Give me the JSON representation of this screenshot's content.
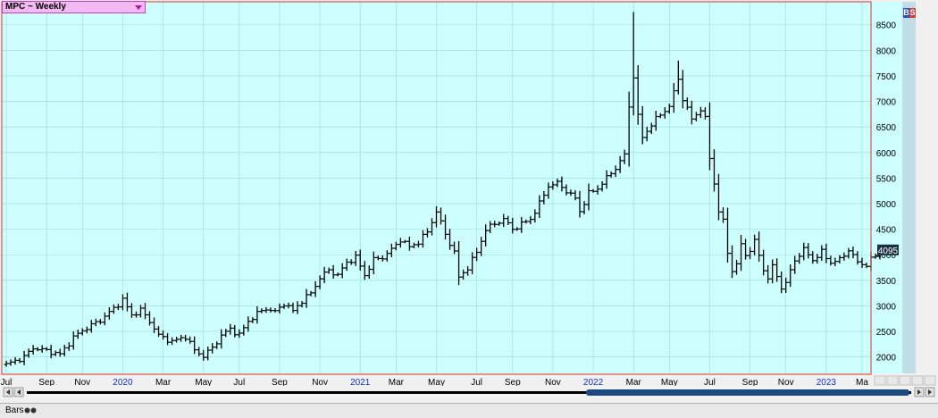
{
  "title_bar": {
    "label": "MPC ~ Weekly"
  },
  "badge": {
    "b": "B",
    "s": "S",
    "b_color": "#3050c0",
    "s_color": "#d04040"
  },
  "bottom_bar": {
    "mode_label": "Bars"
  },
  "colors": {
    "plot_bg": "#ccfffe",
    "grid": "#9ad8e0",
    "bars": "#000000",
    "frame": "#e03030",
    "price_tag": "#1a3040",
    "year_label": "#1030d0",
    "scrollbar": "#1a4a80"
  },
  "chart_data": {
    "type": "bar",
    "style": "ohlc",
    "title": "MPC ~ Weekly",
    "y_axis": {
      "ticks": [
        2000,
        2500,
        3000,
        3500,
        4000,
        4500,
        5000,
        5500,
        6000,
        6500,
        7000,
        7500,
        8000,
        8500
      ],
      "position": "right"
    },
    "ylim": [
      1680,
      8950
    ],
    "x_axis": {
      "labels": [
        {
          "text": "Jul",
          "is_year": false,
          "t": 0
        },
        {
          "text": "Sep",
          "is_year": false,
          "t": 9
        },
        {
          "text": "Nov",
          "is_year": false,
          "t": 17
        },
        {
          "text": "2020",
          "is_year": true,
          "t": 26
        },
        {
          "text": "Mar",
          "is_year": false,
          "t": 35
        },
        {
          "text": "May",
          "is_year": false,
          "t": 44
        },
        {
          "text": "Jul",
          "is_year": false,
          "t": 52
        },
        {
          "text": "Sep",
          "is_year": false,
          "t": 61
        },
        {
          "text": "Nov",
          "is_year": false,
          "t": 70
        },
        {
          "text": "2021",
          "is_year": true,
          "t": 79
        },
        {
          "text": "Mar",
          "is_year": false,
          "t": 87
        },
        {
          "text": "May",
          "is_year": false,
          "t": 96
        },
        {
          "text": "Jul",
          "is_year": false,
          "t": 105
        },
        {
          "text": "Sep",
          "is_year": false,
          "t": 113
        },
        {
          "text": "Nov",
          "is_year": false,
          "t": 122
        },
        {
          "text": "2022",
          "is_year": true,
          "t": 131
        },
        {
          "text": "Mar",
          "is_year": false,
          "t": 140
        },
        {
          "text": "May",
          "is_year": false,
          "t": 148
        },
        {
          "text": "Jul",
          "is_year": false,
          "t": 157
        },
        {
          "text": "Sep",
          "is_year": false,
          "t": 166
        },
        {
          "text": "Nov",
          "is_year": false,
          "t": 174
        },
        {
          "text": "2023",
          "is_year": true,
          "t": 183
        },
        {
          "text": "Ma",
          "is_year": false,
          "t": 191
        }
      ]
    },
    "last_price": 4095,
    "x_span": [
      -1,
      193
    ],
    "anchors": [
      [
        0,
        1850
      ],
      [
        4,
        2000
      ],
      [
        6,
        2180
      ],
      [
        10,
        2100
      ],
      [
        12,
        2050
      ],
      [
        15,
        2380
      ],
      [
        17,
        2520
      ],
      [
        21,
        2720
      ],
      [
        24,
        2950
      ],
      [
        26,
        3120
      ],
      [
        28,
        2820
      ],
      [
        30,
        2920
      ],
      [
        32,
        2700
      ],
      [
        34,
        2420
      ],
      [
        37,
        2300
      ],
      [
        40,
        2400
      ],
      [
        42,
        2130
      ],
      [
        44,
        2020
      ],
      [
        46,
        2180
      ],
      [
        48,
        2420
      ],
      [
        50,
        2550
      ],
      [
        52,
        2430
      ],
      [
        54,
        2700
      ],
      [
        56,
        2850
      ],
      [
        58,
        2950
      ],
      [
        60,
        2880
      ],
      [
        62,
        3050
      ],
      [
        64,
        2900
      ],
      [
        66,
        3100
      ],
      [
        68,
        3250
      ],
      [
        70,
        3550
      ],
      [
        72,
        3700
      ],
      [
        74,
        3600
      ],
      [
        76,
        3850
      ],
      [
        78,
        3950
      ],
      [
        80,
        3600
      ],
      [
        82,
        3900
      ],
      [
        84,
        3950
      ],
      [
        86,
        4100
      ],
      [
        88,
        4300
      ],
      [
        90,
        4150
      ],
      [
        92,
        4250
      ],
      [
        94,
        4450
      ],
      [
        96,
        4850
      ],
      [
        98,
        4400
      ],
      [
        100,
        4050
      ],
      [
        101,
        3550
      ],
      [
        103,
        3750
      ],
      [
        105,
        4050
      ],
      [
        107,
        4500
      ],
      [
        109,
        4600
      ],
      [
        111,
        4700
      ],
      [
        113,
        4500
      ],
      [
        115,
        4600
      ],
      [
        117,
        4700
      ],
      [
        119,
        5000
      ],
      [
        121,
        5350
      ],
      [
        123,
        5400
      ],
      [
        125,
        5250
      ],
      [
        127,
        5100
      ],
      [
        128,
        4850
      ],
      [
        130,
        5200
      ],
      [
        132,
        5300
      ],
      [
        134,
        5500
      ],
      [
        136,
        5700
      ],
      [
        138,
        5950
      ],
      [
        139,
        6900
      ],
      [
        140,
        7500
      ],
      [
        141,
        6700
      ],
      [
        142,
        6300
      ],
      [
        144,
        6550
      ],
      [
        146,
        6750
      ],
      [
        148,
        6900
      ],
      [
        150,
        7450
      ],
      [
        151,
        7050
      ],
      [
        153,
        6650
      ],
      [
        155,
        6850
      ],
      [
        156,
        6650
      ],
      [
        157,
        5900
      ],
      [
        158,
        5400
      ],
      [
        159,
        4850
      ],
      [
        160,
        4650
      ],
      [
        161,
        4050
      ],
      [
        162,
        3700
      ],
      [
        163,
        3800
      ],
      [
        164,
        4200
      ],
      [
        165,
        4000
      ],
      [
        166,
        4100
      ],
      [
        167,
        4250
      ],
      [
        168,
        4000
      ],
      [
        169,
        3700
      ],
      [
        170,
        3550
      ],
      [
        171,
        3750
      ],
      [
        172,
        3600
      ],
      [
        173,
        3350
      ],
      [
        174,
        3450
      ],
      [
        176,
        3900
      ],
      [
        178,
        4100
      ],
      [
        180,
        3900
      ],
      [
        182,
        4050
      ],
      [
        184,
        3850
      ],
      [
        186,
        3900
      ],
      [
        188,
        4100
      ],
      [
        190,
        3850
      ],
      [
        192,
        3800
      ],
      [
        194,
        4000
      ],
      [
        195,
        4095
      ]
    ],
    "spikes": [
      [
        140,
        8750
      ],
      [
        150,
        7800
      ],
      [
        161,
        4600
      ]
    ]
  }
}
